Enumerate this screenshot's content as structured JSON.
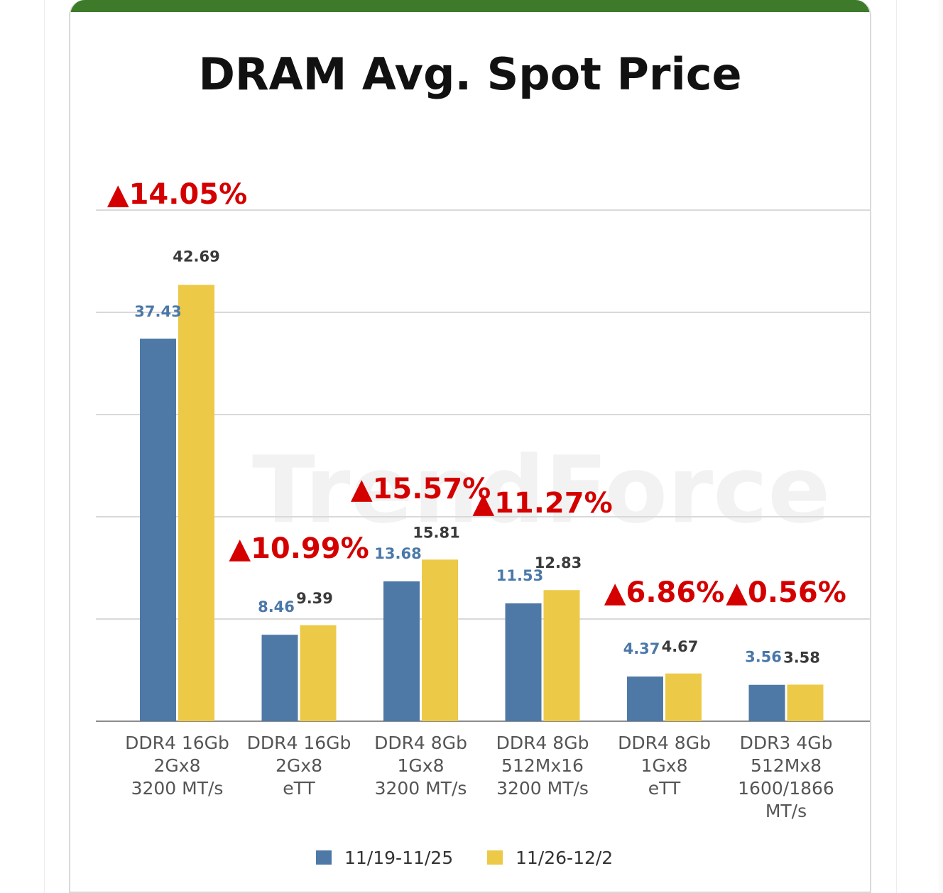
{
  "watermark": "TrendForce",
  "chart_data": {
    "type": "bar",
    "title": "DRAM Avg. Spot Price",
    "xlabel": "",
    "ylabel": "",
    "ylim": [
      0,
      50
    ],
    "grid": true,
    "legend_position": "bottom",
    "categories": [
      [
        "DDR4 16Gb",
        "2Gx8",
        "3200 MT/s"
      ],
      [
        "DDR4 16Gb",
        "2Gx8",
        "eTT"
      ],
      [
        "DDR4 8Gb",
        "1Gx8",
        "3200 MT/s"
      ],
      [
        "DDR4 8Gb",
        "512Mx16",
        "3200 MT/s"
      ],
      [
        "DDR4 8Gb",
        "1Gx8",
        "eTT"
      ],
      [
        "DDR3 4Gb",
        "512Mx8",
        "1600/1866",
        "MT/s"
      ]
    ],
    "series": [
      {
        "name": "11/19-11/25",
        "color": "#4e79a7",
        "values": [
          37.43,
          8.46,
          13.68,
          11.53,
          4.37,
          3.56
        ]
      },
      {
        "name": "11/26-12/2",
        "color": "#edc948",
        "values": [
          42.69,
          9.39,
          15.81,
          12.83,
          4.67,
          3.58
        ]
      }
    ],
    "changes": [
      "▲14.05%",
      "▲10.99%",
      "▲15.57%",
      "▲11.27%",
      "▲6.86%",
      "▲0.56%"
    ],
    "change_color": "#d40000"
  }
}
